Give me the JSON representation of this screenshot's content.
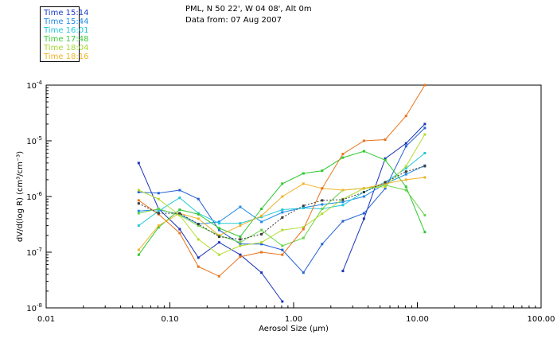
{
  "header": {
    "location": "PML, N 50 22', W 04 08', Alt 0m",
    "date_line": "Data from: 07 Aug 2007"
  },
  "legend": [
    {
      "label": "Time 15:14",
      "color": "#1a3cc8"
    },
    {
      "label": "Time 15:44",
      "color": "#1f8ae6"
    },
    {
      "label": "Time 16:01",
      "color": "#22c8d8"
    },
    {
      "label": "Time 17:48",
      "color": "#3ccc3c"
    },
    {
      "label": "Time 18:04",
      "color": "#a6d836"
    },
    {
      "label": "Time 18:16",
      "color": "#f0b428"
    }
  ],
  "chart_data": {
    "type": "line",
    "xscale": "log",
    "yscale": "log",
    "xlim": [
      0.01,
      100
    ],
    "ylim": [
      1e-08,
      0.0001
    ],
    "xlabel": "Aerosol Size (µm)",
    "ylabel": "dV/d(log R) (cm³/cm⁻³)",
    "x_ticks": [
      {
        "value": 0.01,
        "label": "0.01"
      },
      {
        "value": 0.1,
        "label": "0.10"
      },
      {
        "value": 1,
        "label": "1.00"
      },
      {
        "value": 10,
        "label": "10.00"
      },
      {
        "value": 100,
        "label": "100.00"
      }
    ],
    "y_ticks": [
      {
        "value": 1e-08,
        "base": "10",
        "exp": "-8"
      },
      {
        "value": 1e-07,
        "base": "10",
        "exp": "-7"
      },
      {
        "value": 1e-06,
        "base": "10",
        "exp": "-6"
      },
      {
        "value": 1e-05,
        "base": "10",
        "exp": "-5"
      },
      {
        "value": 0.0001,
        "base": "10",
        "exp": "-4"
      }
    ],
    "series": [
      {
        "name": "series-dark-blue-a",
        "color": "#1a34b8",
        "x": [
          0.056,
          0.081,
          0.12,
          0.17,
          0.25,
          0.37,
          0.55,
          0.81
        ],
        "y": [
          4e-06,
          6e-07,
          2.6e-07,
          8e-08,
          1.5e-07,
          9e-08,
          4.3e-08,
          1.3e-08
        ]
      },
      {
        "name": "series-dark-blue-b",
        "color": "#1a34b8",
        "x": [
          2.5,
          3.7,
          5.5,
          8.1,
          11.5
        ],
        "y": [
          4.6e-08,
          4e-07,
          4.8e-06,
          9e-06,
          2e-05
        ]
      },
      {
        "name": "series-blue",
        "color": "#2462d6",
        "x": [
          0.056,
          0.081,
          0.12,
          0.17,
          0.25,
          0.37,
          0.55,
          0.81,
          1.2,
          1.7,
          2.5,
          3.7,
          5.5,
          8.1,
          11.5
        ],
        "y": [
          1.2e-06,
          1.15e-06,
          1.3e-06,
          9e-07,
          2.5e-07,
          1.4e-07,
          1.4e-07,
          1.1e-07,
          4.3e-08,
          1.4e-07,
          3.6e-07,
          5e-07,
          1.4e-06,
          8e-06,
          1.7e-05
        ]
      },
      {
        "name": "series-sky",
        "color": "#1f8ae6",
        "x": [
          0.056,
          0.081,
          0.12,
          0.17,
          0.25,
          0.37,
          0.55,
          0.81,
          1.2,
          1.7,
          2.5,
          3.7,
          5.5,
          8.1,
          11.5
        ],
        "y": [
          5.5e-07,
          5.8e-07,
          4.8e-07,
          3.2e-07,
          3.5e-07,
          6.5e-07,
          3.5e-07,
          5.2e-07,
          6.3e-07,
          7.2e-07,
          8e-07,
          1e-06,
          1.7e-06,
          2.5e-06,
          3.6e-06
        ]
      },
      {
        "name": "series-cyan",
        "color": "#22c8d8",
        "x": [
          0.056,
          0.081,
          0.12,
          0.17,
          0.25,
          0.37,
          0.55,
          0.81,
          1.2,
          1.7,
          2.5,
          3.7,
          5.5,
          8.1,
          11.5
        ],
        "y": [
          3e-07,
          5.5e-07,
          9.5e-07,
          5e-07,
          3.3e-07,
          3.3e-07,
          4.3e-07,
          5.8e-07,
          6.2e-07,
          6e-07,
          7e-07,
          1.2e-06,
          1.8e-06,
          3.2e-06,
          6e-06
        ]
      },
      {
        "name": "series-green",
        "color": "#2ec82e",
        "x": [
          0.056,
          0.081,
          0.12,
          0.17,
          0.25,
          0.37,
          0.55,
          0.81,
          1.2,
          1.7,
          2.5,
          3.7,
          5.5,
          8.1,
          11.5
        ],
        "y": [
          9e-08,
          2.8e-07,
          5.8e-07,
          4.8e-07,
          2.7e-07,
          1.9e-07,
          6e-07,
          1.7e-06,
          2.6e-06,
          2.9e-06,
          5e-06,
          6.5e-06,
          4.5e-06,
          1.5e-06,
          2.3e-07
        ]
      },
      {
        "name": "series-light-green",
        "color": "#6ad44a",
        "x": [
          0.056,
          0.081,
          0.12,
          0.17,
          0.25,
          0.37,
          0.55,
          0.81,
          1.2,
          1.7,
          2.5,
          3.7,
          5.5,
          8.1,
          11.5
        ],
        "y": [
          5e-07,
          6e-07,
          4.6e-07,
          3e-07,
          2e-07,
          1.5e-07,
          2.5e-07,
          1.3e-07,
          1.8e-07,
          6e-07,
          1.3e-06,
          1.4e-06,
          1.6e-06,
          1.3e-06,
          4.6e-07
        ]
      },
      {
        "name": "series-yellow-green",
        "color": "#b4dc32",
        "x": [
          0.056,
          0.081,
          0.12,
          0.17,
          0.25,
          0.37,
          0.55,
          0.81,
          1.2,
          1.7,
          2.5,
          3.7,
          5.5,
          8.1,
          11.5
        ],
        "y": [
          1.3e-06,
          9e-07,
          4.6e-07,
          1.7e-07,
          9e-08,
          1.3e-07,
          1.5e-07,
          2.5e-07,
          2.8e-07,
          4.9e-07,
          9e-07,
          1.4e-06,
          1.5e-06,
          3.5e-06,
          1.3e-05
        ]
      },
      {
        "name": "series-amber",
        "color": "#f0b428",
        "x": [
          0.056,
          0.081,
          0.12,
          0.17,
          0.25,
          0.37,
          0.55,
          0.81,
          1.2,
          1.7,
          2.5,
          3.7,
          5.5,
          8.1,
          11.5
        ],
        "y": [
          1.1e-07,
          3e-07,
          5e-07,
          4e-07,
          2e-07,
          3e-07,
          4.5e-07,
          1e-06,
          1.7e-06,
          1.4e-06,
          1.3e-06,
          1.4e-06,
          1.7e-06,
          2e-06,
          2.2e-06
        ]
      },
      {
        "name": "series-orange",
        "color": "#e8741c",
        "x": [
          0.056,
          0.081,
          0.12,
          0.17,
          0.25,
          0.37,
          0.55,
          0.81,
          1.2,
          1.7,
          2.5,
          3.7,
          5.5,
          8.1,
          11.5
        ],
        "y": [
          8.5e-07,
          4.8e-07,
          2.2e-07,
          5.5e-08,
          3.7e-08,
          8.3e-08,
          1e-07,
          9e-08,
          2.6e-07,
          1.4e-06,
          5.8e-06,
          1e-05,
          1.05e-05,
          2.8e-05,
          0.0001
        ]
      },
      {
        "name": "series-dark-dashed",
        "color": "#3a3a3a",
        "dash": true,
        "x": [
          0.056,
          0.081,
          0.12,
          0.17,
          0.25,
          0.37,
          0.55,
          0.81,
          1.2,
          1.7,
          2.5,
          3.7,
          5.5,
          8.1,
          11.5
        ],
        "y": [
          7.5e-07,
          5e-07,
          5e-07,
          3.2e-07,
          1.9e-07,
          1.7e-07,
          2.1e-07,
          4.2e-07,
          6.8e-07,
          8.5e-07,
          8.8e-07,
          1.2e-06,
          1.8e-06,
          2.8e-06,
          3.5e-06
        ]
      }
    ]
  }
}
